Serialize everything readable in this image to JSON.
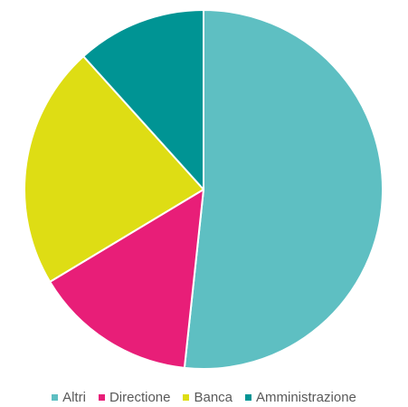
{
  "chart_data": {
    "type": "pie",
    "slices": [
      {
        "label": "Altri",
        "value": 51.7,
        "color": "#5ebfc2"
      },
      {
        "label": "Directione",
        "value": 14.7,
        "color": "#e81e78"
      },
      {
        "label": "Banca",
        "value": 21.9,
        "color": "#dedd14"
      },
      {
        "label": "Amministrazione",
        "value": 11.7,
        "color": "#009494"
      }
    ],
    "start_angle_deg": 0,
    "direction": "clockwise",
    "legend_position": "bottom"
  }
}
